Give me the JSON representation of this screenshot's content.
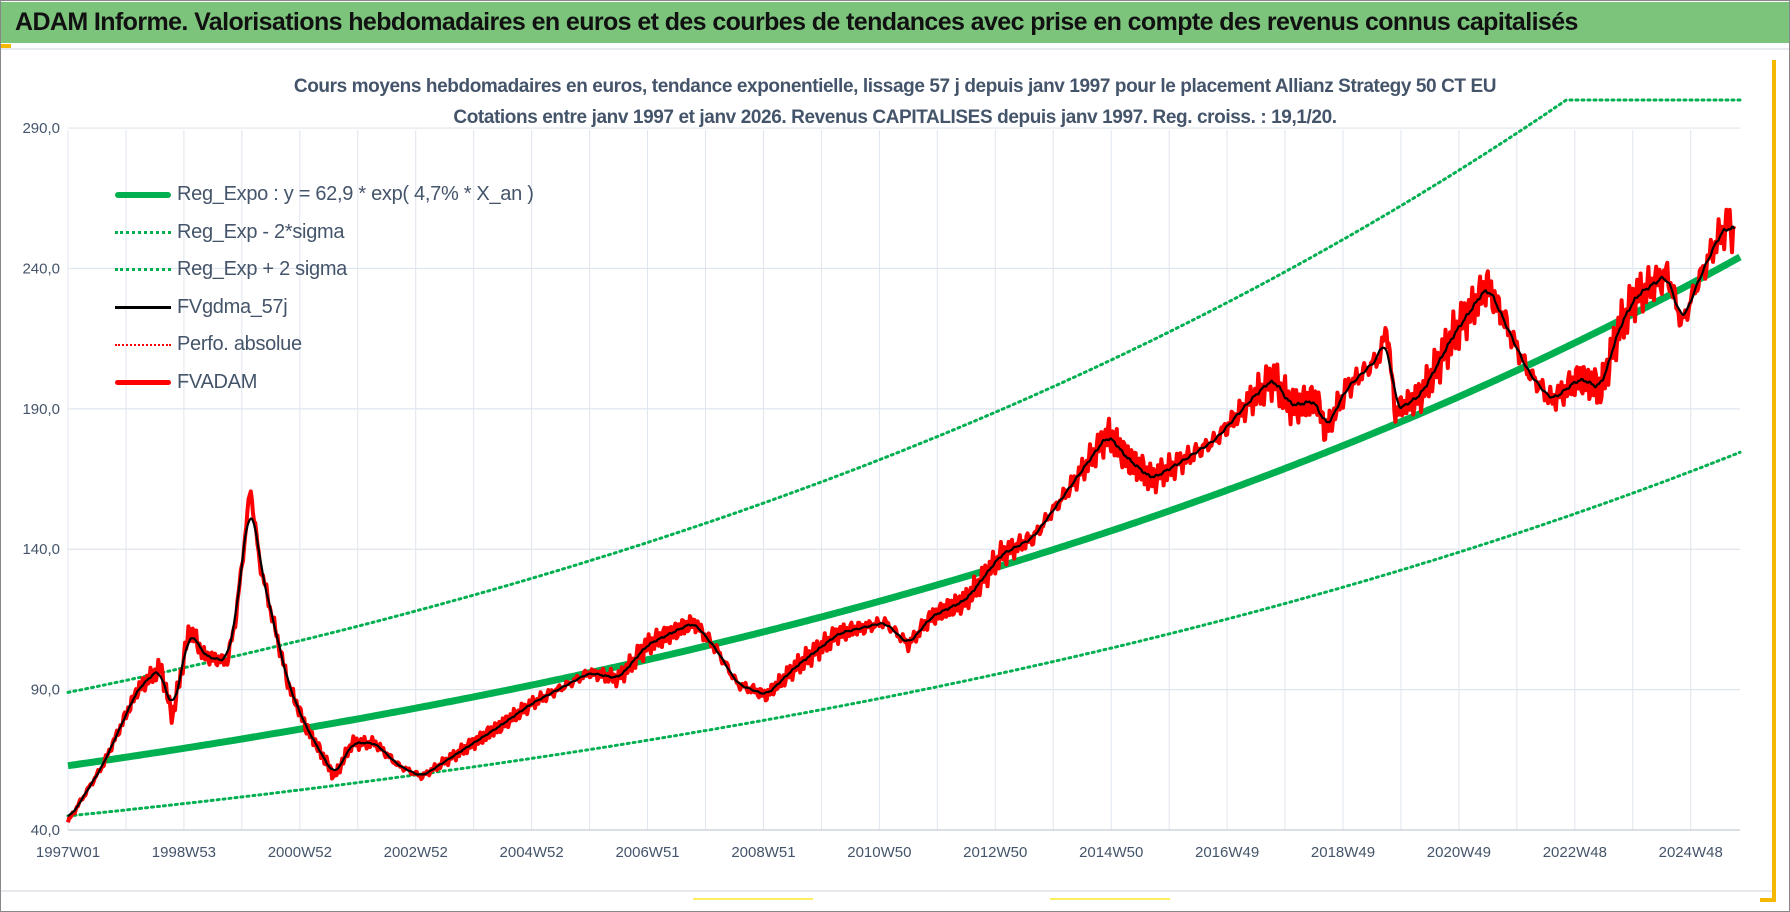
{
  "header": {
    "title": "ADAM Informe. Valorisations hebdomadaires en euros et des courbes de tendances avec prise en compte des revenus connus capitalisés"
  },
  "colors": {
    "header_bg": "#7cc47c",
    "trend": "#00b050",
    "price": "#ff0000",
    "smooth": "#000000",
    "grid": "#dfe5ee"
  },
  "chart_data": {
    "type": "line",
    "title": "Cours moyens hebdomadaires en euros, tendance exponentielle, lissage 57 j depuis janv 1997  pour le placement Allianz Strategy 50 CT EU",
    "subtitle": "Cotations entre janv 1997 et janv 2026. Revenus CAPITALISES depuis janv 1997. Reg. croiss. : 19,1/20.",
    "xlabel": "",
    "ylabel": "",
    "ylim": [
      40,
      300
    ],
    "xlim_years": [
      1997.0,
      2025.85
    ],
    "yticks": [
      {
        "value": 290,
        "label": "290,0"
      },
      {
        "value": 240,
        "label": "240,0"
      },
      {
        "value": 190,
        "label": "190,0"
      },
      {
        "value": 140,
        "label": "140,0"
      },
      {
        "value": 90,
        "label": "90,0"
      },
      {
        "value": 40,
        "label": "40,0"
      }
    ],
    "xticks": [
      {
        "year": 1997.0,
        "label": "1997W01"
      },
      {
        "year": 1999.0,
        "label": "1998W53"
      },
      {
        "year": 2001.0,
        "label": "2000W52"
      },
      {
        "year": 2003.0,
        "label": "2002W52"
      },
      {
        "year": 2005.0,
        "label": "2004W52"
      },
      {
        "year": 2007.0,
        "label": "2006W51"
      },
      {
        "year": 2009.0,
        "label": "2008W51"
      },
      {
        "year": 2011.0,
        "label": "2010W50"
      },
      {
        "year": 2013.0,
        "label": "2012W50"
      },
      {
        "year": 2015.0,
        "label": "2014W50"
      },
      {
        "year": 2017.0,
        "label": "2016W49"
      },
      {
        "year": 2019.0,
        "label": "2018W49"
      },
      {
        "year": 2021.0,
        "label": "2020W49"
      },
      {
        "year": 2023.0,
        "label": "2022W48"
      },
      {
        "year": 2025.0,
        "label": "2024W48"
      }
    ],
    "grid": true,
    "legend_position": "top-left",
    "regression": {
      "a": 62.9,
      "rate": 0.047,
      "lower_factor": 0.715,
      "upper_factor": 1.415
    },
    "series": [
      {
        "name": "Reg_Expo : y = 62,9 * exp( 4,7% *  X_an )",
        "style": "solid-thick",
        "color": "#00b050"
      },
      {
        "name": "Reg_Exp - 2*sigma",
        "style": "dotted",
        "color": "#00b050"
      },
      {
        "name": "Reg_Exp + 2 sigma",
        "style": "dotted",
        "color": "#00b050"
      },
      {
        "name": "FVgdma_57j",
        "style": "solid",
        "color": "#000000"
      },
      {
        "name": "Perfo. absolue",
        "style": "dotted",
        "color": "#ff0000"
      },
      {
        "name": "FVADAM",
        "style": "solid-thick",
        "color": "#ff0000",
        "points": [
          [
            1997.0,
            43
          ],
          [
            1997.6,
            63
          ],
          [
            1998.2,
            90
          ],
          [
            1998.6,
            98
          ],
          [
            1998.8,
            80
          ],
          [
            1999.1,
            112
          ],
          [
            1999.35,
            102
          ],
          [
            1999.75,
            100
          ],
          [
            1999.9,
            116
          ],
          [
            2000.15,
            162
          ],
          [
            2000.3,
            136
          ],
          [
            2000.5,
            118
          ],
          [
            2000.8,
            92
          ],
          [
            2001.1,
            77
          ],
          [
            2001.6,
            59
          ],
          [
            2001.9,
            71
          ],
          [
            2002.3,
            71
          ],
          [
            2002.7,
            63
          ],
          [
            2003.1,
            59
          ],
          [
            2003.7,
            67
          ],
          [
            2004.45,
            77
          ],
          [
            2005.0,
            85
          ],
          [
            2006.0,
            96
          ],
          [
            2006.5,
            94
          ],
          [
            2007.0,
            106
          ],
          [
            2007.8,
            114
          ],
          [
            2008.2,
            104
          ],
          [
            2008.55,
            92
          ],
          [
            2009.05,
            88
          ],
          [
            2009.55,
            98
          ],
          [
            2010.3,
            110
          ],
          [
            2011.1,
            114
          ],
          [
            2011.5,
            106
          ],
          [
            2011.9,
            116
          ],
          [
            2012.5,
            122
          ],
          [
            2013.1,
            138
          ],
          [
            2013.65,
            144
          ],
          [
            2014.25,
            161
          ],
          [
            2014.95,
            181
          ],
          [
            2015.25,
            173
          ],
          [
            2015.7,
            165
          ],
          [
            2016.2,
            171
          ],
          [
            2016.8,
            179
          ],
          [
            2017.4,
            193
          ],
          [
            2017.8,
            201
          ],
          [
            2018.1,
            191
          ],
          [
            2018.55,
            193
          ],
          [
            2018.7,
            182
          ],
          [
            2019.05,
            197
          ],
          [
            2019.65,
            209
          ],
          [
            2019.75,
            220
          ],
          [
            2019.9,
            189
          ],
          [
            2020.35,
            195
          ],
          [
            2020.9,
            216
          ],
          [
            2021.5,
            234
          ],
          [
            2021.9,
            216
          ],
          [
            2022.2,
            203
          ],
          [
            2022.6,
            193
          ],
          [
            2023.1,
            201
          ],
          [
            2023.45,
            197
          ],
          [
            2023.75,
            218
          ],
          [
            2024.05,
            230
          ],
          [
            2024.6,
            238
          ],
          [
            2024.85,
            220
          ],
          [
            2025.1,
            234
          ],
          [
            2025.45,
            250
          ],
          [
            2025.65,
            256
          ],
          [
            2025.75,
            252
          ]
        ]
      }
    ]
  }
}
